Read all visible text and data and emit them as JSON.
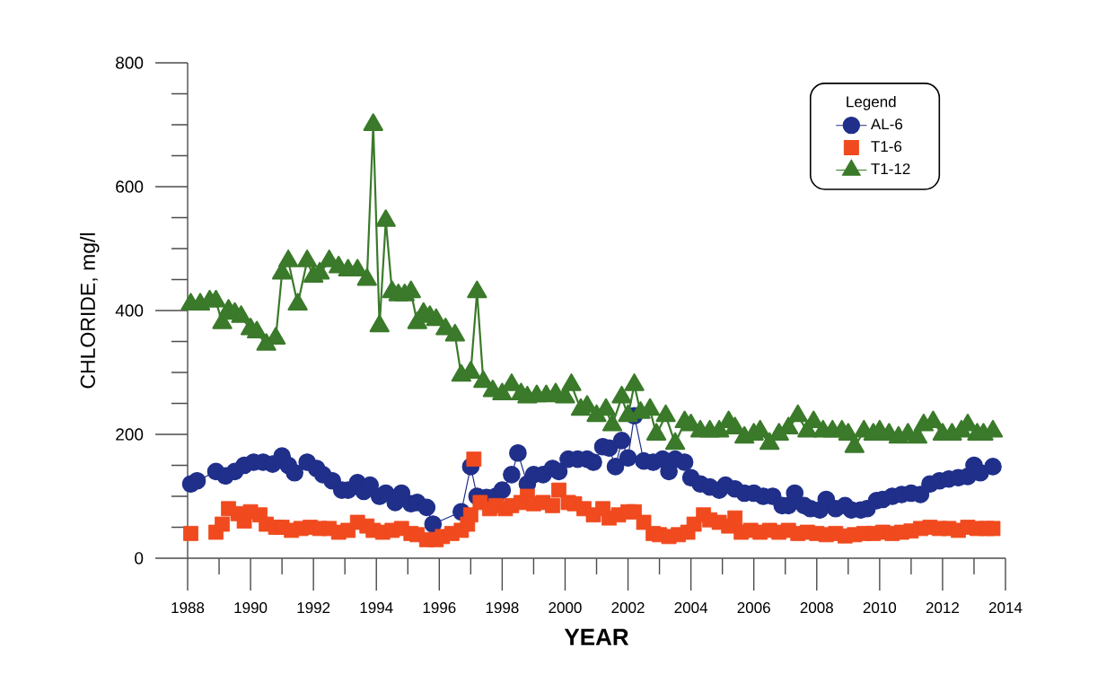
{
  "chart_data": {
    "type": "line",
    "xlabel": "YEAR",
    "ylabel": "CHLORIDE, mg/l",
    "legend_title": "Legend",
    "legend": "top right",
    "xlim": [
      1988,
      2014
    ],
    "ylim": [
      0,
      800
    ],
    "xticks": [
      1988,
      1990,
      1992,
      1994,
      1996,
      1998,
      2000,
      2002,
      2004,
      2006,
      2008,
      2010,
      2012,
      2014
    ],
    "yticks": [
      0,
      200,
      400,
      600,
      800
    ],
    "series": [
      {
        "name": "AL-6",
        "color": "#1f2f8a",
        "marker": "circle",
        "x": [
          1988.1,
          1988.3,
          1988.9,
          1989.2,
          1989.5,
          1989.8,
          1990.1,
          1990.4,
          1990.7,
          1991.0,
          1991.2,
          1991.4,
          1991.8,
          1992.1,
          1992.3,
          1992.6,
          1992.9,
          1993.1,
          1993.4,
          1993.6,
          1993.8,
          1994.1,
          1994.3,
          1994.6,
          1994.8,
          1995.1,
          1995.3,
          1995.6,
          1995.8,
          1996.7,
          1997.0,
          1997.2,
          1997.5,
          1997.8,
          1998.0,
          1998.3,
          1998.5,
          1998.8,
          1999.0,
          1999.3,
          1999.6,
          1999.8,
          2000.1,
          2000.4,
          2000.7,
          2000.9,
          2001.2,
          2001.4,
          2001.6,
          2001.8,
          2002.0,
          2002.2,
          2002.5,
          2002.8,
          2003.1,
          2003.3,
          2003.5,
          2003.8,
          2004.0,
          2004.3,
          2004.6,
          2004.9,
          2005.1,
          2005.4,
          2005.7,
          2006.0,
          2006.3,
          2006.6,
          2006.9,
          2007.1,
          2007.3,
          2007.6,
          2007.8,
          2008.1,
          2008.3,
          2008.6,
          2008.9,
          2009.1,
          2009.4,
          2009.6,
          2009.9,
          2010.1,
          2010.4,
          2010.7,
          2011.0,
          2011.3,
          2011.6,
          2011.9,
          2012.2,
          2012.5,
          2012.8,
          2013.0,
          2013.2,
          2013.6
        ],
        "values": [
          120,
          125,
          140,
          133,
          140,
          150,
          155,
          155,
          152,
          165,
          150,
          138,
          155,
          145,
          135,
          125,
          110,
          110,
          122,
          108,
          118,
          100,
          105,
          90,
          105,
          88,
          90,
          82,
          55,
          75,
          148,
          100,
          98,
          100,
          110,
          135,
          170,
          120,
          135,
          135,
          145,
          140,
          160,
          160,
          160,
          155,
          180,
          178,
          148,
          190,
          162,
          230,
          157,
          155,
          160,
          140,
          160,
          155,
          130,
          120,
          115,
          110,
          118,
          112,
          105,
          105,
          100,
          100,
          85,
          85,
          105,
          85,
          80,
          78,
          95,
          80,
          85,
          78,
          78,
          80,
          93,
          95,
          100,
          103,
          105,
          103,
          120,
          125,
          128,
          130,
          132,
          150,
          138,
          148
        ]
      },
      {
        "name": "T1-6",
        "color": "#f04a1e",
        "type": "scatter",
        "marker": "square",
        "x": [
          1988.1,
          1988.9,
          1989.1,
          1989.3,
          1989.6,
          1989.8,
          1990.0,
          1990.3,
          1990.5,
          1990.8,
          1991.0,
          1991.3,
          1991.6,
          1991.9,
          1992.2,
          1992.5,
          1992.8,
          1993.1,
          1993.4,
          1993.7,
          1993.9,
          1994.2,
          1994.5,
          1994.8,
          1995.1,
          1995.3,
          1995.6,
          1995.9,
          1996.1,
          1996.4,
          1996.7,
          1996.9,
          1997.0,
          1997.1,
          1997.3,
          1997.6,
          1997.8,
          1998.1,
          1998.3,
          1998.6,
          1998.8,
          1999.0,
          1999.3,
          1999.6,
          1999.8,
          2000.1,
          2000.3,
          2000.6,
          2000.9,
          2001.2,
          2001.4,
          2001.7,
          2002.0,
          2002.2,
          2002.5,
          2002.8,
          2003.0,
          2003.3,
          2003.6,
          2003.9,
          2004.1,
          2004.4,
          2004.6,
          2004.9,
          2005.2,
          2005.4,
          2005.6,
          2005.9,
          2006.2,
          2006.5,
          2006.8,
          2007.1,
          2007.4,
          2007.7,
          2008.0,
          2008.3,
          2008.6,
          2008.9,
          2009.2,
          2009.5,
          2009.8,
          2010.1,
          2010.4,
          2010.7,
          2011.0,
          2011.3,
          2011.6,
          2011.9,
          2012.2,
          2012.5,
          2012.8,
          2013.1,
          2013.4,
          2013.6
        ],
        "values": [
          40,
          42,
          55,
          80,
          72,
          60,
          75,
          70,
          55,
          50,
          50,
          45,
          48,
          50,
          48,
          48,
          42,
          45,
          58,
          52,
          45,
          42,
          45,
          48,
          40,
          38,
          30,
          30,
          35,
          40,
          45,
          55,
          70,
          160,
          90,
          80,
          85,
          80,
          85,
          90,
          100,
          88,
          90,
          85,
          110,
          90,
          88,
          80,
          70,
          80,
          65,
          70,
          75,
          75,
          58,
          40,
          38,
          35,
          38,
          42,
          55,
          70,
          62,
          58,
          52,
          65,
          42,
          45,
          42,
          45,
          42,
          45,
          40,
          42,
          40,
          38,
          40,
          36,
          38,
          40,
          40,
          42,
          40,
          42,
          44,
          48,
          50,
          48,
          48,
          45,
          50,
          48,
          48,
          48
        ]
      },
      {
        "name": "T1-12",
        "color": "#3a7a2a",
        "marker": "triangle",
        "x": [
          1988.1,
          1988.4,
          1988.7,
          1988.9,
          1989.1,
          1989.3,
          1989.5,
          1989.7,
          1990.0,
          1990.2,
          1990.5,
          1990.8,
          1991.0,
          1991.2,
          1991.5,
          1991.8,
          1992.0,
          1992.2,
          1992.5,
          1992.8,
          1993.1,
          1993.4,
          1993.7,
          1993.9,
          1994.1,
          1994.3,
          1994.5,
          1994.7,
          1994.9,
          1995.1,
          1995.3,
          1995.5,
          1995.7,
          1995.9,
          1996.2,
          1996.5,
          1996.7,
          1997.0,
          1997.2,
          1997.4,
          1997.7,
          1998.0,
          1998.3,
          1998.6,
          1998.8,
          1999.1,
          1999.4,
          1999.7,
          2000.0,
          2000.2,
          2000.5,
          2000.7,
          2001.0,
          2001.3,
          2001.5,
          2001.8,
          2002.0,
          2002.2,
          2002.4,
          2002.7,
          2002.9,
          2003.2,
          2003.5,
          2003.8,
          2004.0,
          2004.3,
          2004.6,
          2004.9,
          2005.2,
          2005.4,
          2005.7,
          2006.0,
          2006.2,
          2006.5,
          2006.8,
          2007.1,
          2007.4,
          2007.7,
          2007.9,
          2008.2,
          2008.5,
          2008.8,
          2009.0,
          2009.2,
          2009.5,
          2009.8,
          2010.0,
          2010.3,
          2010.6,
          2010.9,
          2011.2,
          2011.4,
          2011.7,
          2012.0,
          2012.3,
          2012.6,
          2012.8,
          2013.1,
          2013.3,
          2013.6
        ],
        "values": [
          410,
          410,
          415,
          415,
          380,
          400,
          395,
          390,
          370,
          365,
          345,
          355,
          460,
          480,
          410,
          480,
          455,
          460,
          480,
          470,
          465,
          465,
          450,
          700,
          375,
          545,
          430,
          425,
          425,
          430,
          380,
          395,
          390,
          385,
          370,
          360,
          295,
          300,
          430,
          285,
          270,
          265,
          280,
          265,
          260,
          262,
          262,
          265,
          260,
          280,
          240,
          245,
          230,
          240,
          215,
          260,
          230,
          280,
          235,
          240,
          200,
          230,
          185,
          220,
          215,
          205,
          205,
          205,
          220,
          210,
          195,
          200,
          205,
          185,
          200,
          210,
          230,
          205,
          220,
          205,
          205,
          205,
          200,
          180,
          205,
          200,
          205,
          200,
          195,
          200,
          195,
          215,
          220,
          200,
          200,
          205,
          215,
          200,
          200,
          205
        ]
      }
    ]
  }
}
